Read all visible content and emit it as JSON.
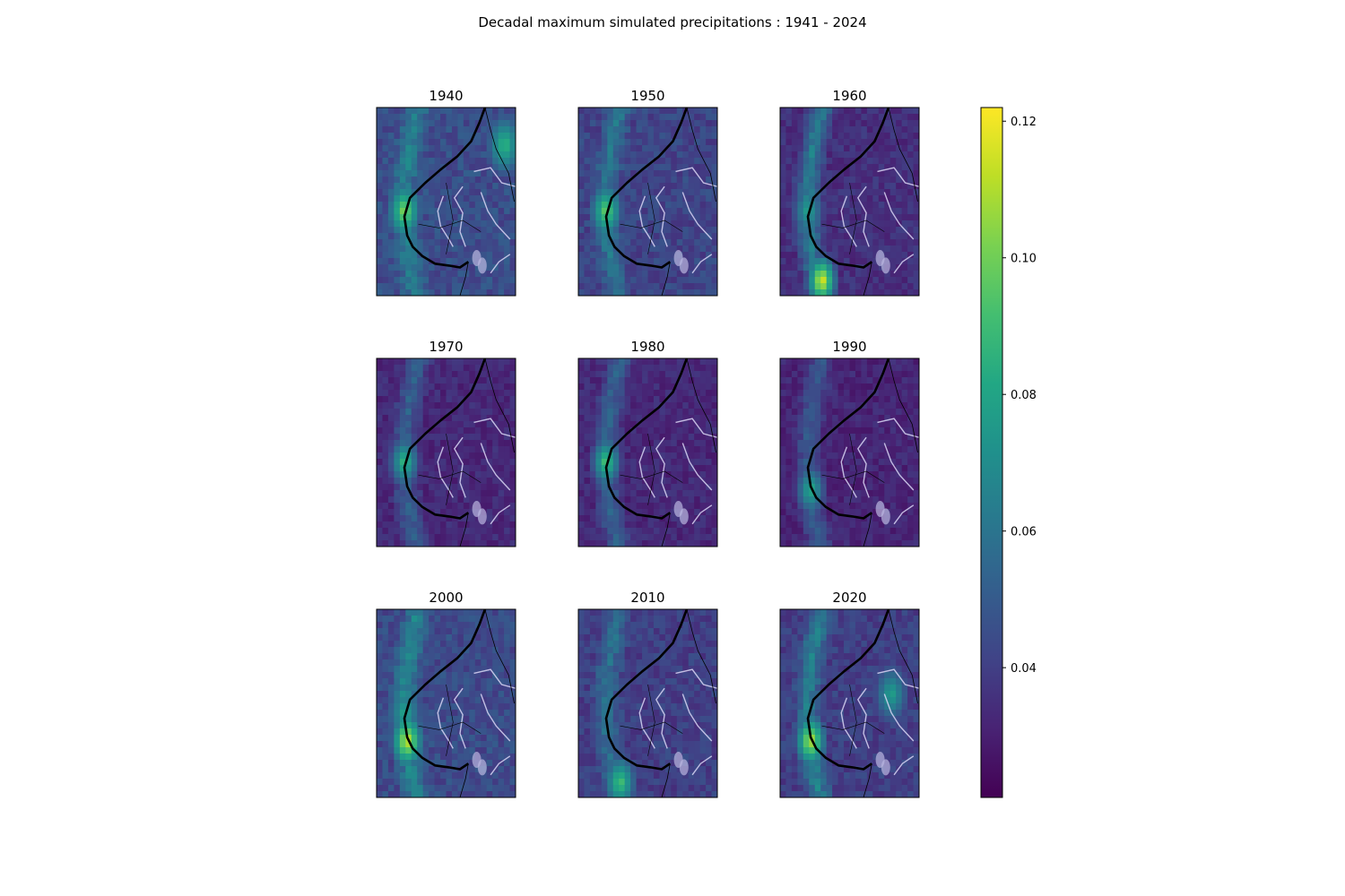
{
  "title": "Decadal maximum simulated precipitations : 1941 - 2024",
  "chart_data": {
    "type": "heatmap",
    "title": "Decadal maximum simulated precipitations : 1941 - 2024",
    "panels": [
      {
        "label": "1940",
        "max": 0.105,
        "mean": 0.045,
        "hotspots": [
          {
            "region": "west-coast",
            "value": 0.105
          },
          {
            "region": "north-east-ridge",
            "value": 0.09
          }
        ]
      },
      {
        "label": "1950",
        "max": 0.1,
        "mean": 0.042,
        "hotspots": [
          {
            "region": "west-coast",
            "value": 0.1
          }
        ]
      },
      {
        "label": "1960",
        "max": 0.122,
        "mean": 0.035,
        "hotspots": [
          {
            "region": "south-coast",
            "value": 0.122
          },
          {
            "region": "west-coast",
            "value": 0.08
          }
        ]
      },
      {
        "label": "1970",
        "max": 0.09,
        "mean": 0.033,
        "hotspots": [
          {
            "region": "west-coast",
            "value": 0.09
          }
        ]
      },
      {
        "label": "1980",
        "max": 0.095,
        "mean": 0.033,
        "hotspots": [
          {
            "region": "west-coast",
            "value": 0.095
          }
        ]
      },
      {
        "label": "1990",
        "max": 0.085,
        "mean": 0.032,
        "hotspots": [
          {
            "region": "south-west",
            "value": 0.085
          }
        ]
      },
      {
        "label": "2000",
        "max": 0.118,
        "mean": 0.044,
        "hotspots": [
          {
            "region": "south-west",
            "value": 0.118
          },
          {
            "region": "west-coast",
            "value": 0.08
          }
        ]
      },
      {
        "label": "2010",
        "max": 0.095,
        "mean": 0.04,
        "hotspots": [
          {
            "region": "south-coast",
            "value": 0.095
          }
        ]
      },
      {
        "label": "2020",
        "max": 0.115,
        "mean": 0.04,
        "hotspots": [
          {
            "region": "south-west",
            "value": 0.115
          },
          {
            "region": "east",
            "value": 0.08
          }
        ]
      }
    ],
    "colorbar": {
      "colormap": "viridis",
      "range": [
        0.021,
        0.122
      ],
      "ticks": [
        "0.04",
        "0.06",
        "0.08",
        "0.10",
        "0.12"
      ],
      "tick_values": [
        0.04,
        0.06,
        0.08,
        0.1,
        0.12
      ]
    },
    "layout": {
      "rows": 3,
      "cols": 3
    }
  }
}
